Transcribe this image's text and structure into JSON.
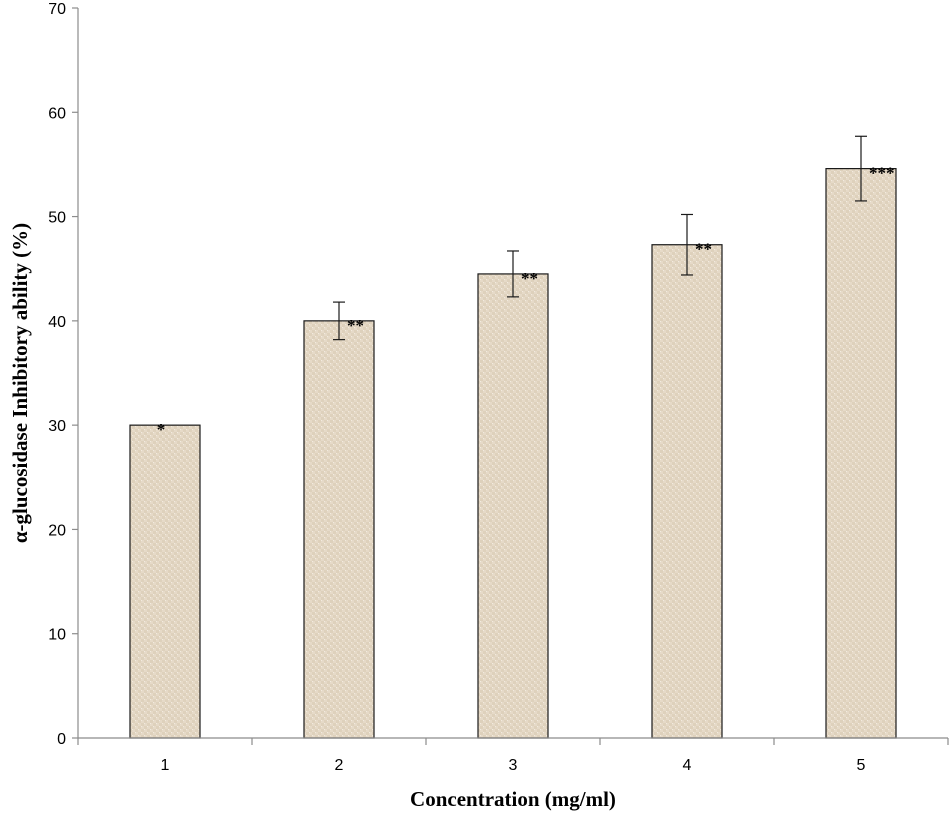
{
  "chart_data": {
    "type": "bar",
    "categories": [
      "1",
      "2",
      "3",
      "4",
      "5"
    ],
    "values": [
      30,
      40,
      44.5,
      47.3,
      54.6
    ],
    "error": [
      0,
      1.8,
      2.2,
      2.9,
      3.1
    ],
    "significance": [
      "*",
      "**",
      "**",
      "**",
      "***"
    ],
    "xlabel": "Concentration (mg/ml)",
    "ylabel": "α-glucosidase Inhibitory ability (%)",
    "ylim": [
      0,
      70
    ],
    "yticks": [
      0,
      10,
      20,
      30,
      40,
      50,
      60,
      70
    ],
    "grid": false,
    "colors": {
      "bar_fill": "#e6dac8",
      "bar_border": "#1a1a1a",
      "axis": "#8c8c8c"
    }
  }
}
